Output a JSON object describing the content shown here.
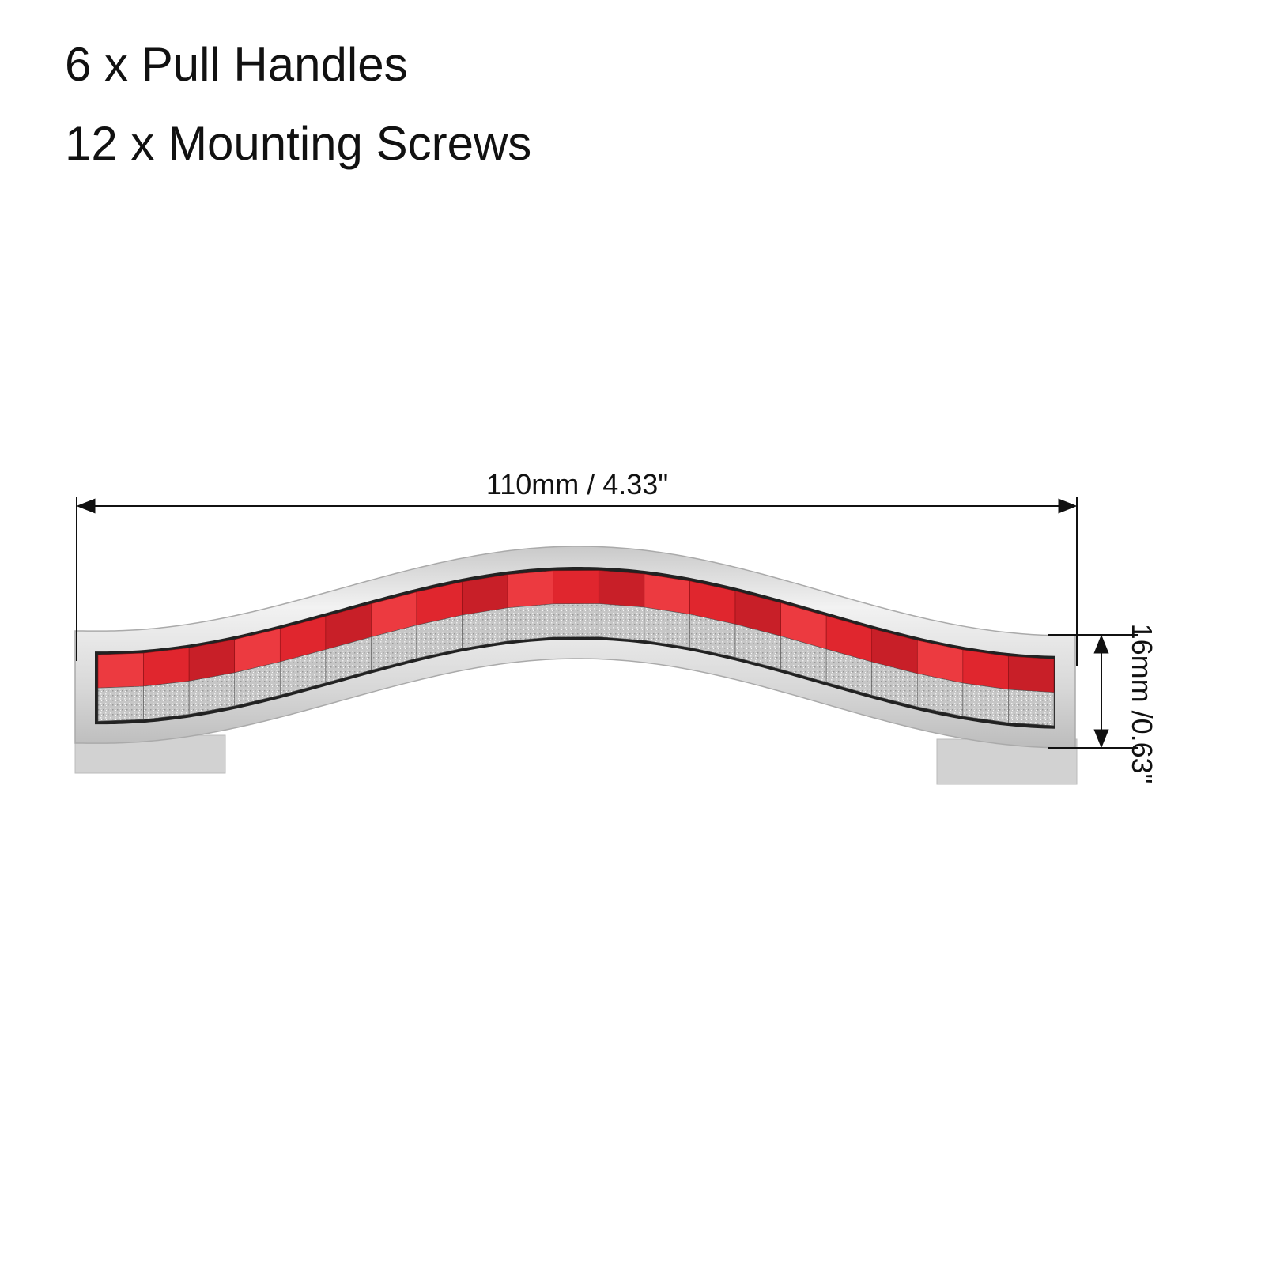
{
  "contents": {
    "line1": "6 x Pull Handles",
    "line2": "12 x Mounting Screws"
  },
  "dimensions": {
    "length_label": "110mm / 4.33\"",
    "height_label": "16mm /0.63\""
  },
  "product": {
    "name": "pull-handle",
    "colors": {
      "inlay_red": "#e0262e",
      "inlay_silver": "#c4c4c4",
      "chrome": "#dcdcdc"
    }
  }
}
